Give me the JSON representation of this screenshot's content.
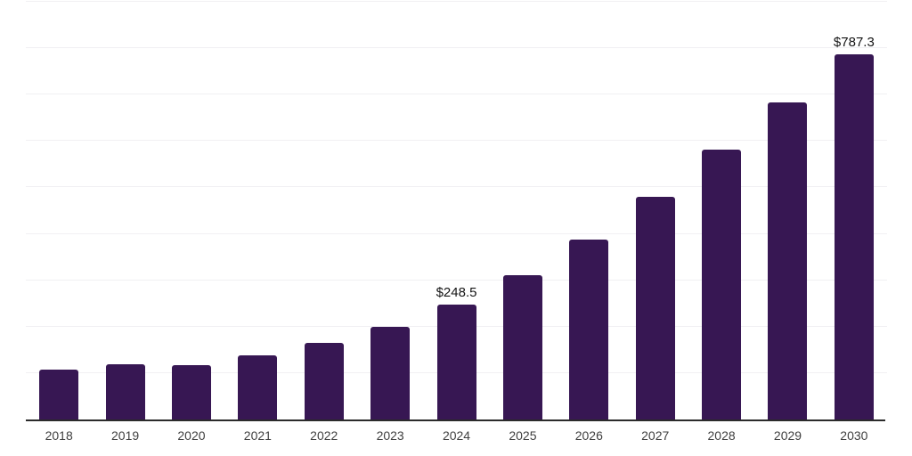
{
  "page": {
    "background": "#ffffff"
  },
  "chart_data": {
    "type": "bar",
    "title": "",
    "xlabel": "",
    "ylabel": "",
    "categories": [
      "2018",
      "2019",
      "2020",
      "2021",
      "2022",
      "2023",
      "2024",
      "2025",
      "2026",
      "2027",
      "2028",
      "2029",
      "2030"
    ],
    "values": [
      107.1,
      119.0,
      116.2,
      138.6,
      165.3,
      200.3,
      248.5,
      311.9,
      388.3,
      480.6,
      580.6,
      683.0,
      787.3
    ],
    "value_labels": {
      "2024": "$248.5",
      "2030": "$787.3"
    },
    "ylim": [
      0,
      900
    ],
    "grid_step": 100,
    "grid": "horizontal-only, no y-axis tick labels",
    "legend": "none",
    "colors": {
      "bar": "#371753",
      "grid": "#f1f0f3",
      "axis": "#2b2b2b",
      "x_tick_label": "#3f3f3f",
      "value_label": "#141414"
    }
  }
}
